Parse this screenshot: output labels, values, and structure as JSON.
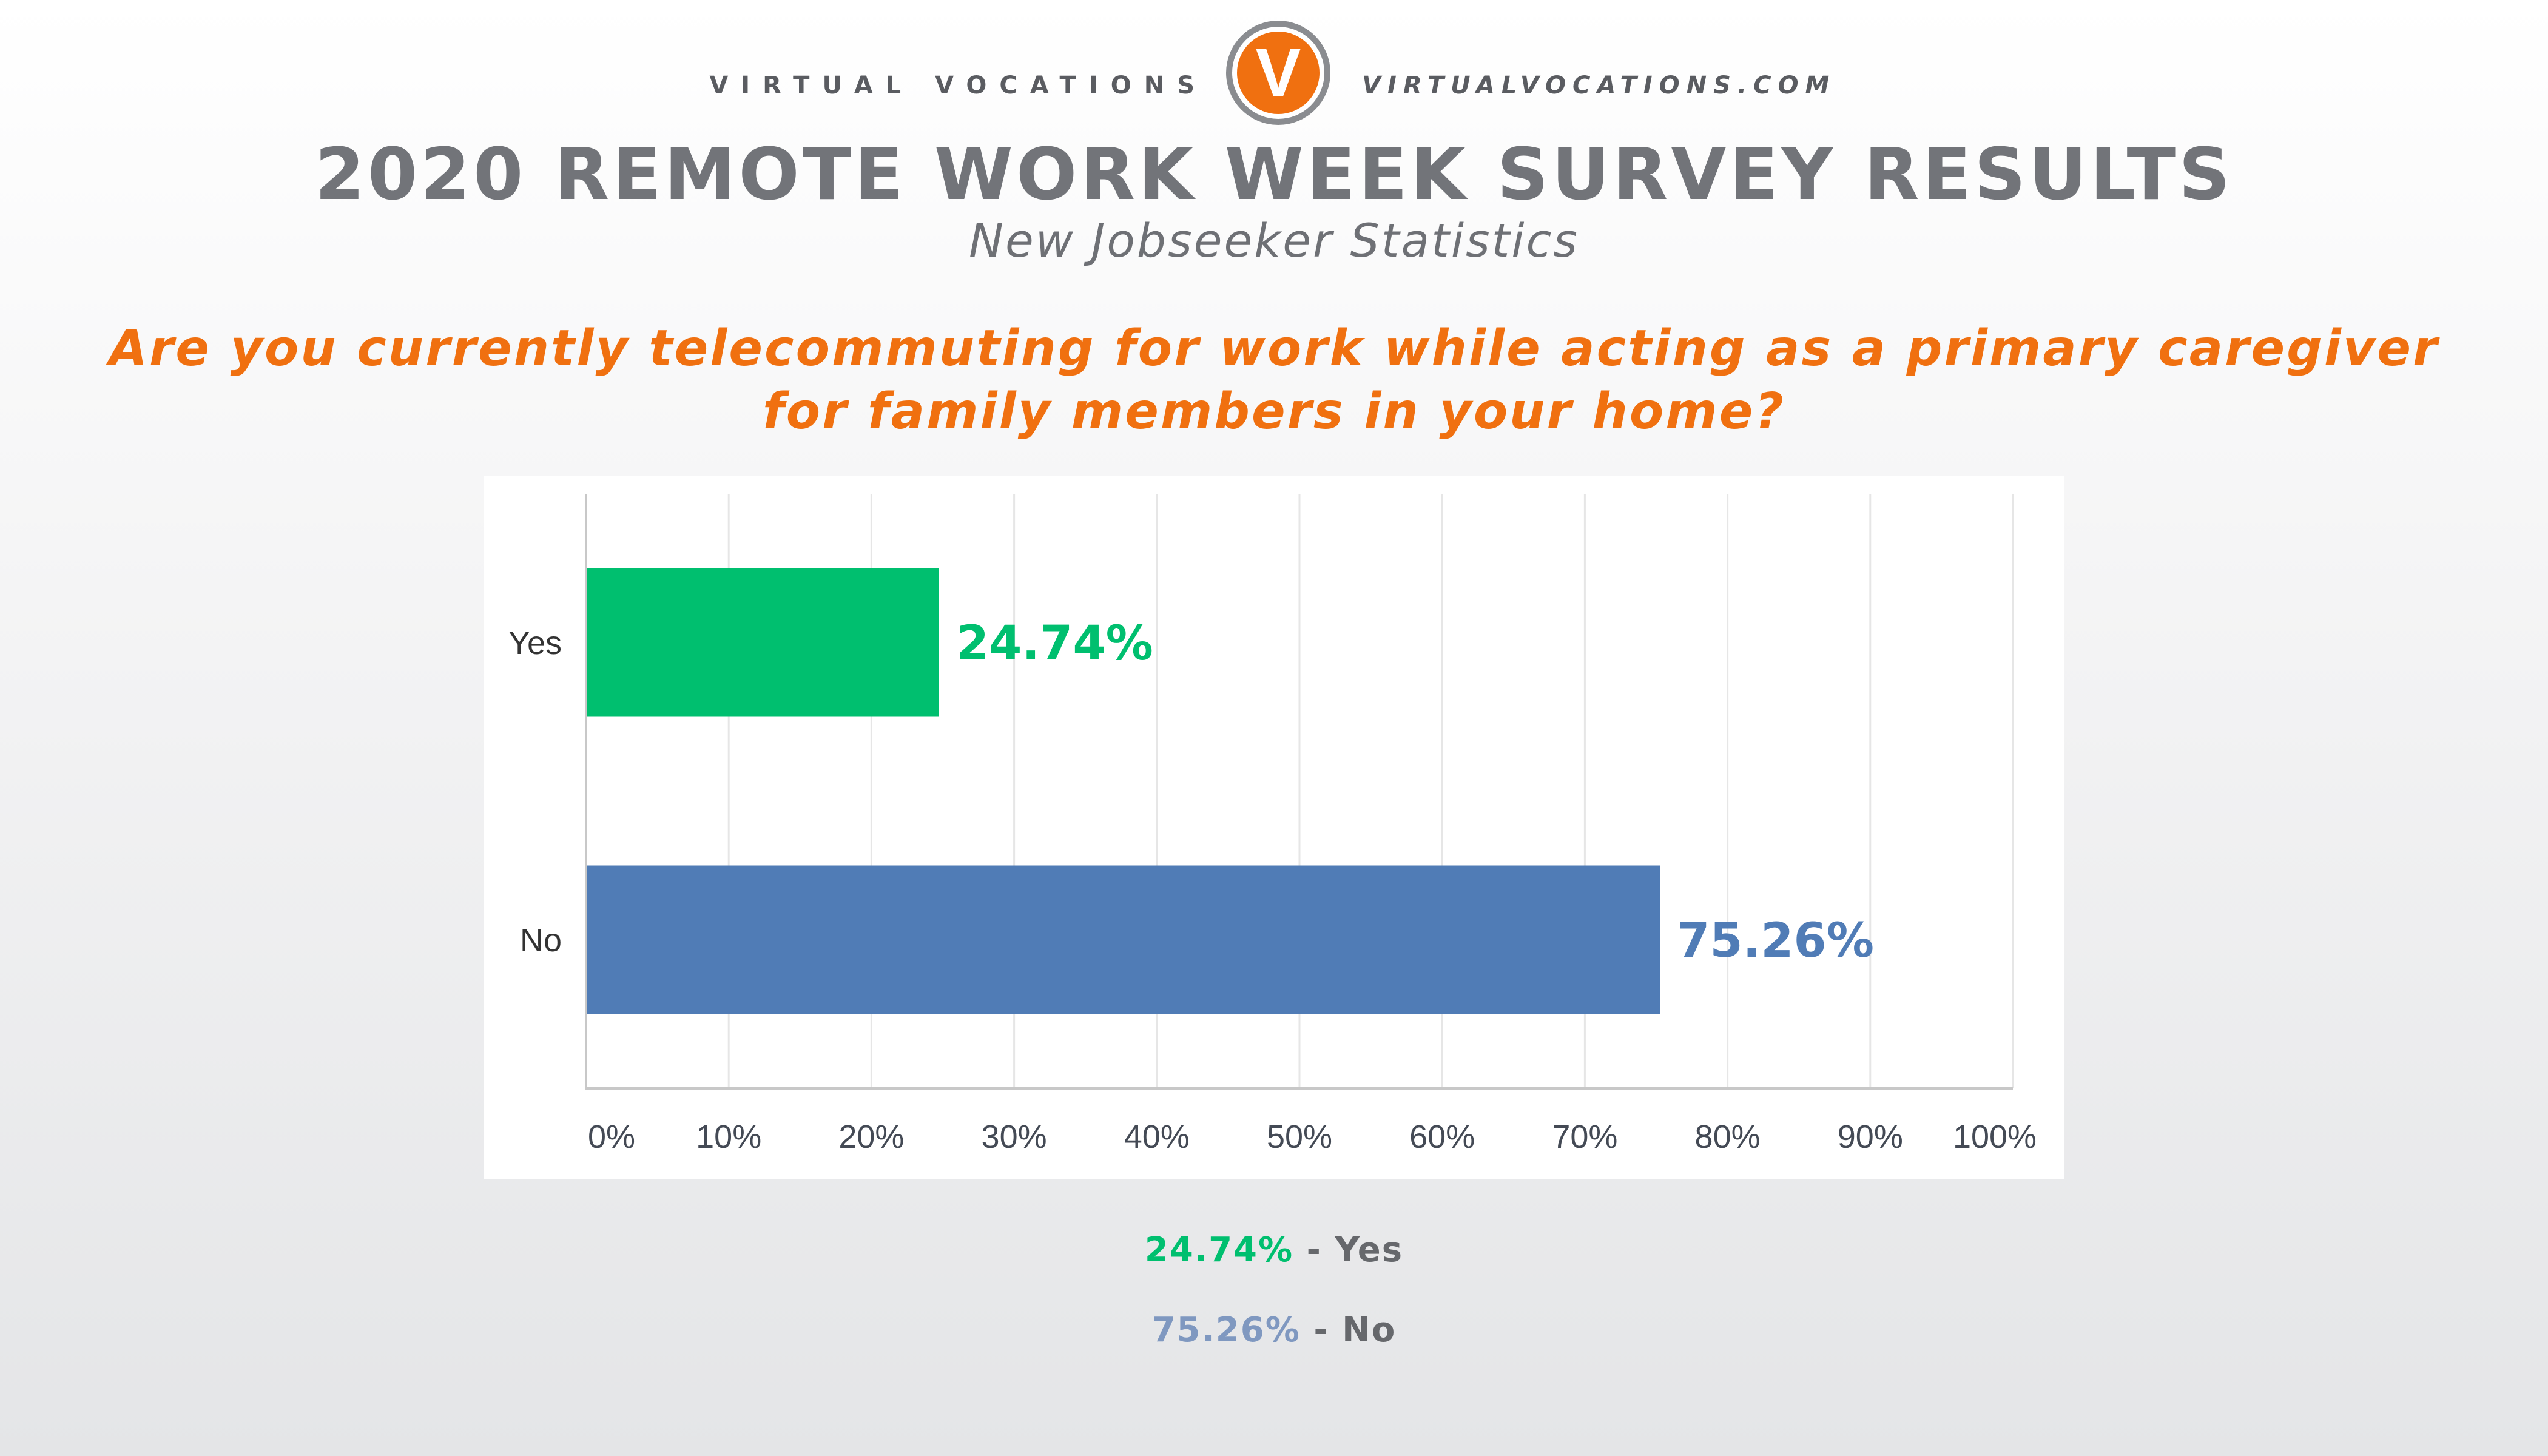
{
  "header": {
    "brand_left": "VIRTUAL VOCATIONS",
    "brand_right": "VIRTUALVOCATIONS.COM",
    "logo_letter": "V",
    "title": "2020 REMOTE WORK WEEK SURVEY RESULTS",
    "subtitle": "New Jobseeker Statistics",
    "question_line1": "Are you currently telecommuting for work while acting as a primary caregiver",
    "question_line2": "for family members in your home?"
  },
  "colors": {
    "yes": "#00bf6f",
    "no": "#507cb6",
    "accent": "#f07010",
    "logo_ring": "#8a8c90",
    "gridline": "#e6e6e6",
    "axis_text": "#333333"
  },
  "chart_data": {
    "type": "bar",
    "orientation": "horizontal",
    "categories": [
      "Yes",
      "No"
    ],
    "values": [
      24.74,
      75.26
    ],
    "value_labels": [
      "24.74%",
      "75.26%"
    ],
    "bar_colors": [
      "#00bf6f",
      "#507cb6"
    ],
    "xlim": [
      0,
      100
    ],
    "x_ticks": [
      "0%",
      "10%",
      "20%",
      "30%",
      "40%",
      "50%",
      "60%",
      "70%",
      "80%",
      "90%",
      "100%"
    ],
    "grid": true
  },
  "legend": {
    "yes_value": "24.74%",
    "yes_label": "Yes",
    "no_value": "75.26%",
    "no_label": "No",
    "separator": " - "
  }
}
